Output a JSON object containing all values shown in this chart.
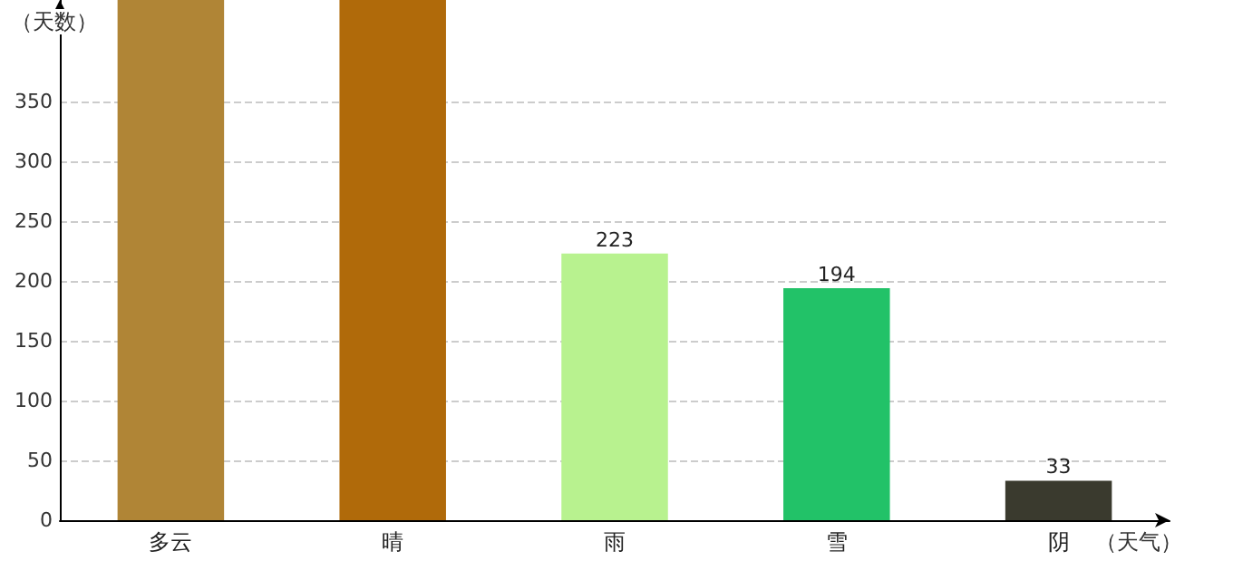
{
  "chart_data": {
    "type": "bar",
    "ylabel": "（天数）",
    "xlabel": "（天气）",
    "categories": [
      "多云",
      "晴",
      "雨",
      "雪",
      "阴"
    ],
    "values": [
      435,
      435,
      223,
      194,
      33
    ],
    "colors": [
      "#b08536",
      "#b06a0a",
      "#b8f28f",
      "#22c268",
      "#3a3a2e"
    ],
    "value_labels": [
      null,
      null,
      "223",
      "194",
      "33"
    ],
    "ylim": [
      0,
      435
    ],
    "yticks": [
      0,
      50,
      100,
      150,
      200,
      250,
      300,
      350
    ],
    "grid": "y"
  }
}
